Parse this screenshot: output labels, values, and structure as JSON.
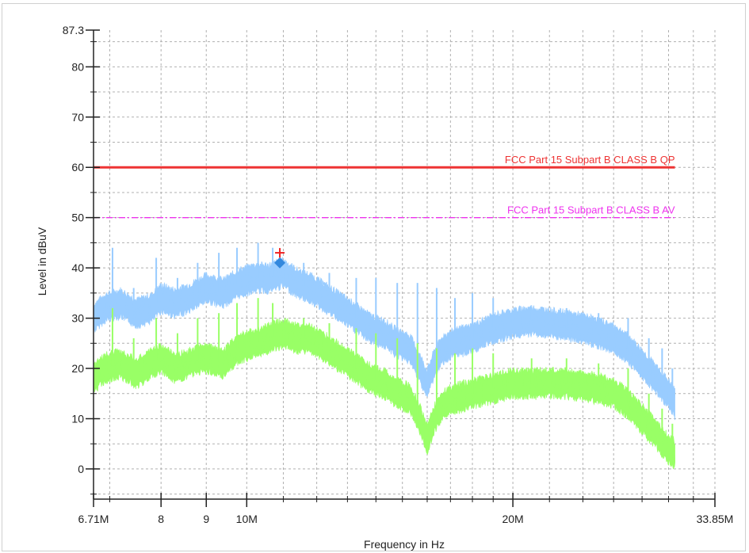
{
  "chart_data": {
    "type": "line",
    "xlabel": "Frequency in Hz",
    "ylabel": "Level in dBuV",
    "xscale": "log",
    "xlim": [
      6.71,
      33.85
    ],
    "ylim": [
      -6,
      87.3
    ],
    "grid": true,
    "x_ticks": [
      {
        "value": 6.71,
        "label": "6.71M"
      },
      {
        "value": 8,
        "label": "8"
      },
      {
        "value": 9,
        "label": "9"
      },
      {
        "value": 10,
        "label": "10M"
      },
      {
        "value": 20,
        "label": "20M"
      },
      {
        "value": 33.85,
        "label": "33.85M"
      }
    ],
    "y_ticks": [
      {
        "value": 87.3,
        "label": "87.3"
      },
      {
        "value": 80,
        "label": "80"
      },
      {
        "value": 70,
        "label": "70"
      },
      {
        "value": 60,
        "label": "60"
      },
      {
        "value": 50,
        "label": "50"
      },
      {
        "value": 40,
        "label": "40"
      },
      {
        "value": 30,
        "label": "30"
      },
      {
        "value": 20,
        "label": "20"
      },
      {
        "value": 10,
        "label": "10"
      },
      {
        "value": 0,
        "label": "0"
      }
    ],
    "limit_lines": [
      {
        "name": "FCC Part 15 Subpart B  CLASS B  QP",
        "value": 60,
        "x_end": 30.5,
        "color": "#ee3333",
        "style": "solid"
      },
      {
        "name": "FCC Part 15 Subpart B  CLASS B  AV",
        "value": 50,
        "x_end": 30.5,
        "color": "#ee33ee",
        "style": "dashdot"
      }
    ],
    "series": [
      {
        "color": "#99ccff",
        "x": [
          6.71,
          6.9,
          7.2,
          7.5,
          7.8,
          8.0,
          8.3,
          8.6,
          9.0,
          9.4,
          9.8,
          10.2,
          10.6,
          11.0,
          11.4,
          11.8,
          12.3,
          12.8,
          13.3,
          13.8,
          14.3,
          14.8,
          15.3,
          15.7,
          16.0,
          16.3,
          16.7,
          17.2,
          18.0,
          19.0,
          20.0,
          21.0,
          22.0,
          23.0,
          24.0,
          25.0,
          26.0,
          27.0,
          28.0,
          29.0,
          30.0,
          30.5
        ],
        "values": [
          30,
          32,
          33,
          31,
          32,
          34,
          33,
          34,
          36,
          35,
          37,
          38,
          38,
          39,
          37,
          36,
          34,
          32,
          30,
          28,
          27,
          25,
          24,
          20,
          17,
          21,
          24,
          25,
          26,
          28,
          29,
          29.5,
          29,
          28.5,
          28,
          27,
          26,
          24,
          21,
          18,
          15,
          13
        ],
        "spikes": [
          {
            "x": 7.05,
            "value": 44
          },
          {
            "x": 7.45,
            "value": 36
          },
          {
            "x": 7.9,
            "value": 42
          },
          {
            "x": 8.35,
            "value": 38
          },
          {
            "x": 8.8,
            "value": 41
          },
          {
            "x": 9.3,
            "value": 43
          },
          {
            "x": 9.75,
            "value": 44
          },
          {
            "x": 10.3,
            "value": 45
          },
          {
            "x": 10.7,
            "value": 44
          },
          {
            "x": 11.6,
            "value": 41
          },
          {
            "x": 12.4,
            "value": 39
          },
          {
            "x": 13.3,
            "value": 38
          },
          {
            "x": 14.0,
            "value": 38
          },
          {
            "x": 14.8,
            "value": 37
          },
          {
            "x": 15.6,
            "value": 37
          },
          {
            "x": 16.4,
            "value": 36
          },
          {
            "x": 17.2,
            "value": 34
          },
          {
            "x": 18.0,
            "value": 35
          },
          {
            "x": 19.0,
            "value": 34
          },
          {
            "x": 21.0,
            "value": 32
          },
          {
            "x": 23.0,
            "value": 32
          },
          {
            "x": 25.0,
            "value": 31
          },
          {
            "x": 27.0,
            "value": 30
          },
          {
            "x": 28.5,
            "value": 26
          },
          {
            "x": 29.5,
            "value": 24
          },
          {
            "x": 30.3,
            "value": 20
          }
        ]
      },
      {
        "color": "#99ff66",
        "x": [
          6.71,
          6.9,
          7.2,
          7.5,
          7.8,
          8.0,
          8.3,
          8.6,
          9.0,
          9.4,
          9.8,
          10.2,
          10.6,
          11.0,
          11.4,
          11.8,
          12.3,
          12.8,
          13.3,
          13.8,
          14.3,
          14.8,
          15.3,
          15.7,
          16.0,
          16.3,
          16.7,
          17.2,
          18.0,
          19.0,
          20.0,
          21.0,
          22.0,
          23.0,
          24.0,
          25.0,
          26.0,
          27.0,
          28.0,
          29.0,
          30.0,
          30.5
        ],
        "values": [
          18,
          20,
          21,
          19,
          21,
          22,
          20,
          21,
          22,
          21,
          24,
          25,
          26,
          27,
          26,
          26,
          24,
          22,
          20,
          18,
          17,
          15,
          14,
          10,
          6,
          10,
          13,
          14,
          15,
          16,
          17,
          17,
          17,
          17,
          16.5,
          16,
          15,
          13,
          10,
          7,
          4,
          3
        ],
        "spikes": [
          {
            "x": 7.05,
            "value": 32
          },
          {
            "x": 7.45,
            "value": 26
          },
          {
            "x": 7.9,
            "value": 30
          },
          {
            "x": 8.35,
            "value": 27
          },
          {
            "x": 8.8,
            "value": 30
          },
          {
            "x": 9.3,
            "value": 31
          },
          {
            "x": 9.75,
            "value": 33
          },
          {
            "x": 10.3,
            "value": 34
          },
          {
            "x": 10.7,
            "value": 33
          },
          {
            "x": 11.6,
            "value": 30
          },
          {
            "x": 12.4,
            "value": 29
          },
          {
            "x": 13.3,
            "value": 28
          },
          {
            "x": 14.0,
            "value": 27
          },
          {
            "x": 14.8,
            "value": 26
          },
          {
            "x": 15.6,
            "value": 25
          },
          {
            "x": 16.4,
            "value": 24
          },
          {
            "x": 17.2,
            "value": 23
          },
          {
            "x": 18.0,
            "value": 24
          },
          {
            "x": 19.0,
            "value": 23
          },
          {
            "x": 21.0,
            "value": 22
          },
          {
            "x": 23.0,
            "value": 22
          },
          {
            "x": 25.0,
            "value": 21
          },
          {
            "x": 27.0,
            "value": 20
          },
          {
            "x": 28.5,
            "value": 15
          },
          {
            "x": 29.5,
            "value": 12
          },
          {
            "x": 30.3,
            "value": 9
          }
        ]
      }
    ],
    "markers": [
      {
        "shape": "cross",
        "x": 10.9,
        "value": 43,
        "color": "#ee2222"
      },
      {
        "shape": "diamond",
        "x": 10.9,
        "value": 41,
        "color": "#3388dd"
      }
    ]
  }
}
